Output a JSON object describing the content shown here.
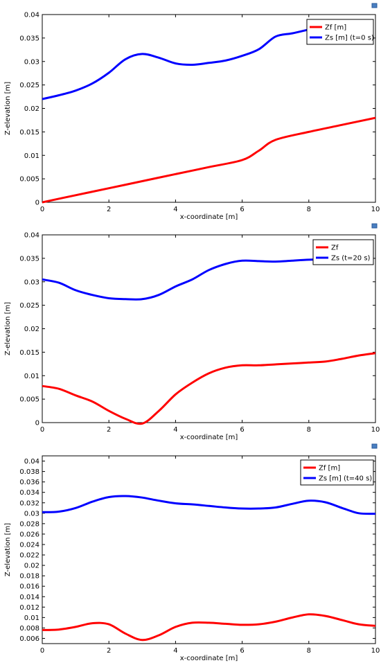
{
  "colors": {
    "zf": "#ff0000",
    "zs": "#0000ff"
  },
  "icons": {
    "corner": "graphics-export-icon"
  },
  "chart_data": [
    {
      "type": "line",
      "xlabel": "x-coordinate [m]",
      "ylabel": "Z-elevation [m]",
      "xlim": [
        0,
        10
      ],
      "ylim": [
        0,
        0.04
      ],
      "x_ticks": [
        0,
        2,
        4,
        6,
        8,
        10
      ],
      "y_ticks": [
        0,
        0.005,
        0.01,
        0.015,
        0.02,
        0.025,
        0.03,
        0.035,
        0.04
      ],
      "legend_position": "top-right",
      "series": [
        {
          "name": "Zf [m]",
          "color": "#ff0000",
          "x": [
            0,
            1,
            2,
            3,
            4,
            5,
            6,
            6.5,
            7,
            8,
            9,
            10
          ],
          "y": [
            0,
            0.0015,
            0.003,
            0.0045,
            0.006,
            0.0075,
            0.009,
            0.011,
            0.0133,
            0.015,
            0.0165,
            0.018
          ]
        },
        {
          "name": "Zs [m] (t=0 s)",
          "color": "#0000ff",
          "x": [
            0,
            0.5,
            1,
            1.5,
            2,
            2.5,
            3,
            3.5,
            4,
            4.5,
            5,
            5.5,
            6,
            6.5,
            7,
            7.5,
            8,
            8.5
          ],
          "y": [
            0.022,
            0.0228,
            0.0238,
            0.0253,
            0.0276,
            0.0305,
            0.0316,
            0.0308,
            0.0296,
            0.0293,
            0.0297,
            0.0302,
            0.0312,
            0.0326,
            0.0353,
            0.036,
            0.0368,
            0.0375
          ]
        }
      ]
    },
    {
      "type": "line",
      "xlabel": "x-coordinate [m]",
      "ylabel": "Z-elevation [m]",
      "xlim": [
        0,
        10
      ],
      "ylim": [
        0,
        0.04
      ],
      "x_ticks": [
        0,
        2,
        4,
        6,
        8,
        10
      ],
      "y_ticks": [
        0,
        0.005,
        0.01,
        0.015,
        0.02,
        0.025,
        0.03,
        0.035,
        0.04
      ],
      "legend_position": "top-right",
      "series": [
        {
          "name": "Zf",
          "color": "#ff0000",
          "x": [
            0,
            0.5,
            1,
            1.5,
            2,
            2.5,
            3,
            3.5,
            4,
            4.5,
            5,
            5.5,
            6,
            6.5,
            7,
            7.5,
            8,
            8.5,
            9,
            9.5,
            10
          ],
          "y": [
            0.0078,
            0.0072,
            0.0058,
            0.0045,
            0.0025,
            0.0008,
            -0.0002,
            0.0025,
            0.006,
            0.0085,
            0.0105,
            0.0117,
            0.0122,
            0.0122,
            0.0124,
            0.0126,
            0.0128,
            0.013,
            0.0136,
            0.0143,
            0.0148
          ]
        },
        {
          "name": "Zs (t=20 s)",
          "color": "#0000ff",
          "x": [
            0,
            0.5,
            1,
            1.5,
            2,
            2.5,
            3,
            3.5,
            4,
            4.5,
            5,
            5.5,
            6,
            6.5,
            7,
            7.5,
            8,
            8.5
          ],
          "y": [
            0.0305,
            0.0298,
            0.0282,
            0.0272,
            0.0265,
            0.0263,
            0.0263,
            0.0272,
            0.029,
            0.0305,
            0.0325,
            0.0338,
            0.0345,
            0.0344,
            0.0343,
            0.0345,
            0.0347,
            0.0348
          ]
        }
      ]
    },
    {
      "type": "line",
      "xlabel": "x-coordinate [m]",
      "ylabel": "Z-elevation [m]",
      "xlim": [
        0,
        10
      ],
      "ylim": [
        0.005,
        0.041
      ],
      "x_ticks": [
        0,
        2,
        4,
        6,
        8,
        10
      ],
      "y_ticks": [
        0.006,
        0.008,
        0.01,
        0.012,
        0.014,
        0.016,
        0.018,
        0.02,
        0.022,
        0.024,
        0.026,
        0.028,
        0.03,
        0.032,
        0.034,
        0.036,
        0.038,
        0.04
      ],
      "legend_position": "top-right",
      "series": [
        {
          "name": "Zf [m]",
          "color": "#ff0000",
          "x": [
            0,
            0.5,
            1,
            1.5,
            2,
            2.5,
            3,
            3.5,
            4,
            4.5,
            5,
            5.5,
            6,
            6.5,
            7,
            7.5,
            8,
            8.5,
            9,
            9.5,
            10
          ],
          "y": [
            0.0076,
            0.0077,
            0.0082,
            0.0089,
            0.0087,
            0.0069,
            0.0057,
            0.0066,
            0.0082,
            0.009,
            0.009,
            0.0088,
            0.0086,
            0.0087,
            0.0092,
            0.01,
            0.0106,
            0.0103,
            0.0095,
            0.0087,
            0.0084
          ]
        },
        {
          "name": "Zs [m] (t=40 s)",
          "color": "#0000ff",
          "x": [
            0,
            0.5,
            1,
            1.5,
            2,
            2.5,
            3,
            3.5,
            4,
            4.5,
            5,
            5.5,
            6,
            6.5,
            7,
            7.5,
            8,
            8.5,
            9,
            9.5,
            10
          ],
          "y": [
            0.0302,
            0.0303,
            0.031,
            0.0322,
            0.0331,
            0.0333,
            0.033,
            0.0324,
            0.0319,
            0.0317,
            0.0314,
            0.0311,
            0.0309,
            0.0309,
            0.0311,
            0.0318,
            0.0324,
            0.0321,
            0.031,
            0.03,
            0.0299
          ]
        }
      ]
    }
  ]
}
